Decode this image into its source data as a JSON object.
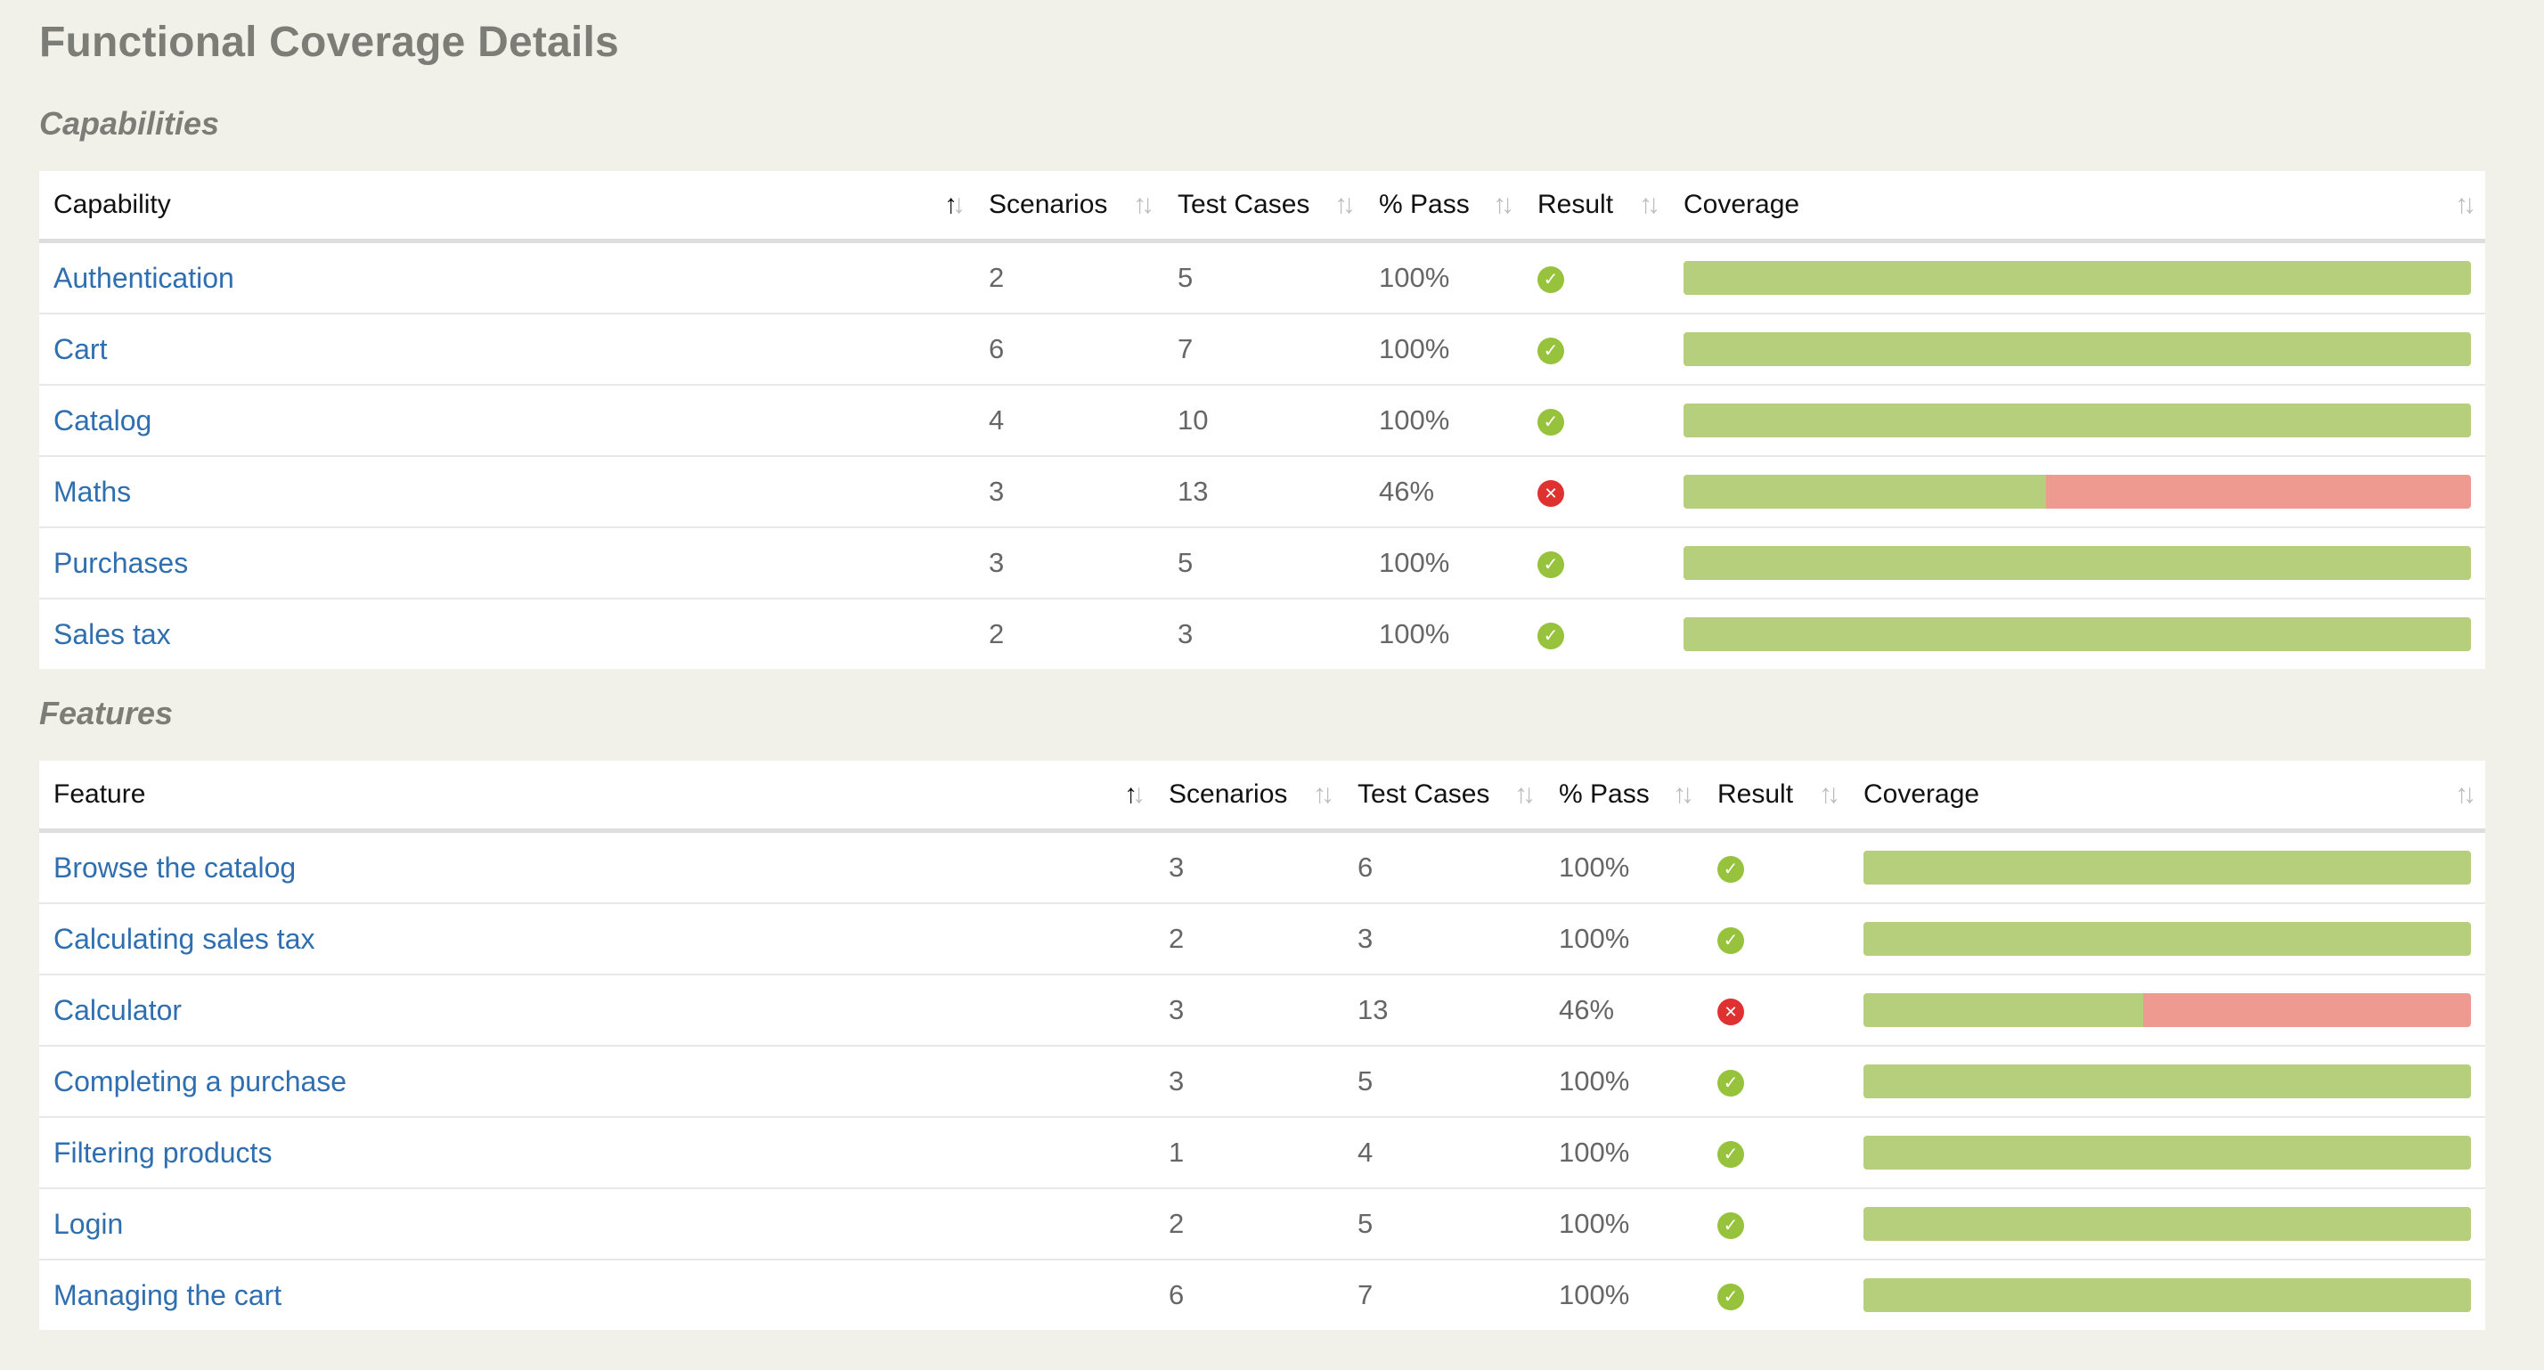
{
  "title": "Functional Coverage Details",
  "colors": {
    "pass": "#b6cf7c",
    "fail": "#ee9a91",
    "link": "#2f6fb0"
  },
  "capabilities": {
    "heading": "Capabilities",
    "columns": [
      "Capability",
      "Scenarios",
      "Test Cases",
      "% Pass",
      "Result",
      "Coverage"
    ],
    "rows": [
      {
        "name": "Authentication",
        "scenarios": "2",
        "test_cases": "5",
        "pass": "100%",
        "result": "pass",
        "coverage": 1.0
      },
      {
        "name": "Cart",
        "scenarios": "6",
        "test_cases": "7",
        "pass": "100%",
        "result": "pass",
        "coverage": 1.0
      },
      {
        "name": "Catalog",
        "scenarios": "4",
        "test_cases": "10",
        "pass": "100%",
        "result": "pass",
        "coverage": 1.0
      },
      {
        "name": "Maths",
        "scenarios": "3",
        "test_cases": "13",
        "pass": "46%",
        "result": "fail",
        "coverage": 0.46
      },
      {
        "name": "Purchases",
        "scenarios": "3",
        "test_cases": "5",
        "pass": "100%",
        "result": "pass",
        "coverage": 1.0
      },
      {
        "name": "Sales tax",
        "scenarios": "2",
        "test_cases": "3",
        "pass": "100%",
        "result": "pass",
        "coverage": 1.0
      }
    ]
  },
  "features": {
    "heading": "Features",
    "columns": [
      "Feature",
      "Scenarios",
      "Test Cases",
      "% Pass",
      "Result",
      "Coverage"
    ],
    "rows": [
      {
        "name": "Browse the catalog",
        "scenarios": "3",
        "test_cases": "6",
        "pass": "100%",
        "result": "pass",
        "coverage": 1.0
      },
      {
        "name": "Calculating sales tax",
        "scenarios": "2",
        "test_cases": "3",
        "pass": "100%",
        "result": "pass",
        "coverage": 1.0
      },
      {
        "name": "Calculator",
        "scenarios": "3",
        "test_cases": "13",
        "pass": "46%",
        "result": "fail",
        "coverage": 0.46
      },
      {
        "name": "Completing a purchase",
        "scenarios": "3",
        "test_cases": "5",
        "pass": "100%",
        "result": "pass",
        "coverage": 1.0
      },
      {
        "name": "Filtering products",
        "scenarios": "1",
        "test_cases": "4",
        "pass": "100%",
        "result": "pass",
        "coverage": 1.0
      },
      {
        "name": "Login",
        "scenarios": "2",
        "test_cases": "5",
        "pass": "100%",
        "result": "pass",
        "coverage": 1.0
      },
      {
        "name": "Managing the cart",
        "scenarios": "6",
        "test_cases": "7",
        "pass": "100%",
        "result": "pass",
        "coverage": 1.0
      }
    ]
  }
}
